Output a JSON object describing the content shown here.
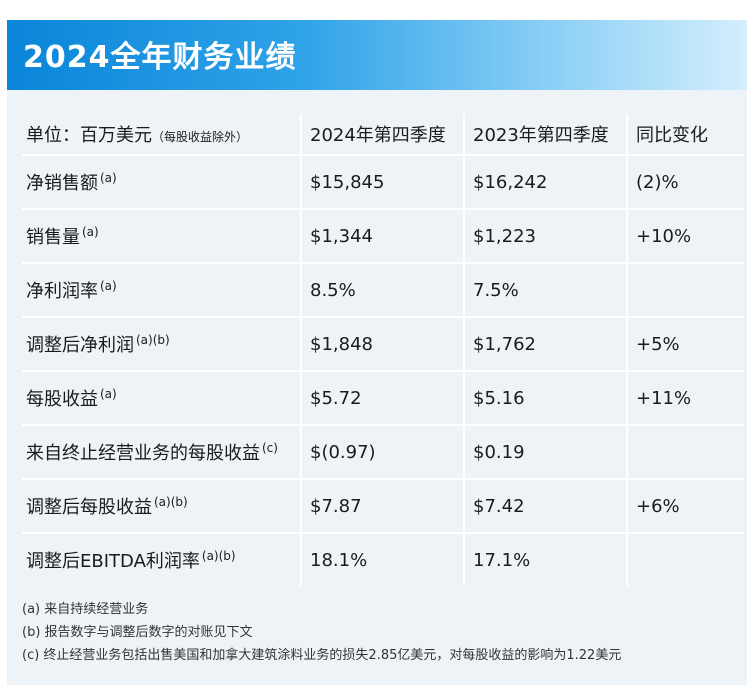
{
  "title": "2024全年财务业绩",
  "table": {
    "header": {
      "unit_label": "单位：百万美元",
      "unit_note": "（每股收益除外）",
      "col_2024": "2024年第四季度",
      "col_2023": "2023年第四季度",
      "col_change": "同比变化"
    },
    "rows": [
      {
        "label": "净销售额",
        "sup": "(a)",
        "v2024": "$15,845",
        "v2023": "$16,242",
        "change": "(2)%"
      },
      {
        "label": "销售量",
        "sup": "(a)",
        "v2024": "$1,344",
        "v2023": "$1,223",
        "change": "+10%"
      },
      {
        "label": "净利润率",
        "sup": "(a)",
        "v2024": "8.5%",
        "v2023": "7.5%",
        "change": ""
      },
      {
        "label": "调整后净利润",
        "sup": "(a)(b)",
        "v2024": "$1,848",
        "v2023": "$1,762",
        "change": "+5%"
      },
      {
        "label": "每股收益",
        "sup": "(a)",
        "v2024": "$5.72",
        "v2023": "$5.16",
        "change": "+11%"
      },
      {
        "label": "来自终止经营业务的每股收益",
        "sup": "(c)",
        "v2024": "$(0.97)",
        "v2023": "$0.19",
        "change": ""
      },
      {
        "label": "调整后每股收益",
        "sup": "(a)(b)",
        "v2024": "$7.87",
        "v2023": "$7.42",
        "change": "+6%"
      },
      {
        "label": "调整后EBITDA利润率",
        "sup": "(a)(b)",
        "v2024": "18.1%",
        "v2023": "17.1%",
        "change": ""
      }
    ]
  },
  "notes": [
    "(a) 来自持续经营业务",
    "(b) 报告数字与调整后数字的对账见下文",
    "(c) 终止经营业务包括出售美国和加拿大建筑涂料业务的损失2.85亿美元，对每股收益的影响为1.22美元"
  ],
  "colors": {
    "banner_start": "#0a85d8",
    "banner_end": "#d4eefc",
    "table_bg": "#eef3f8"
  }
}
